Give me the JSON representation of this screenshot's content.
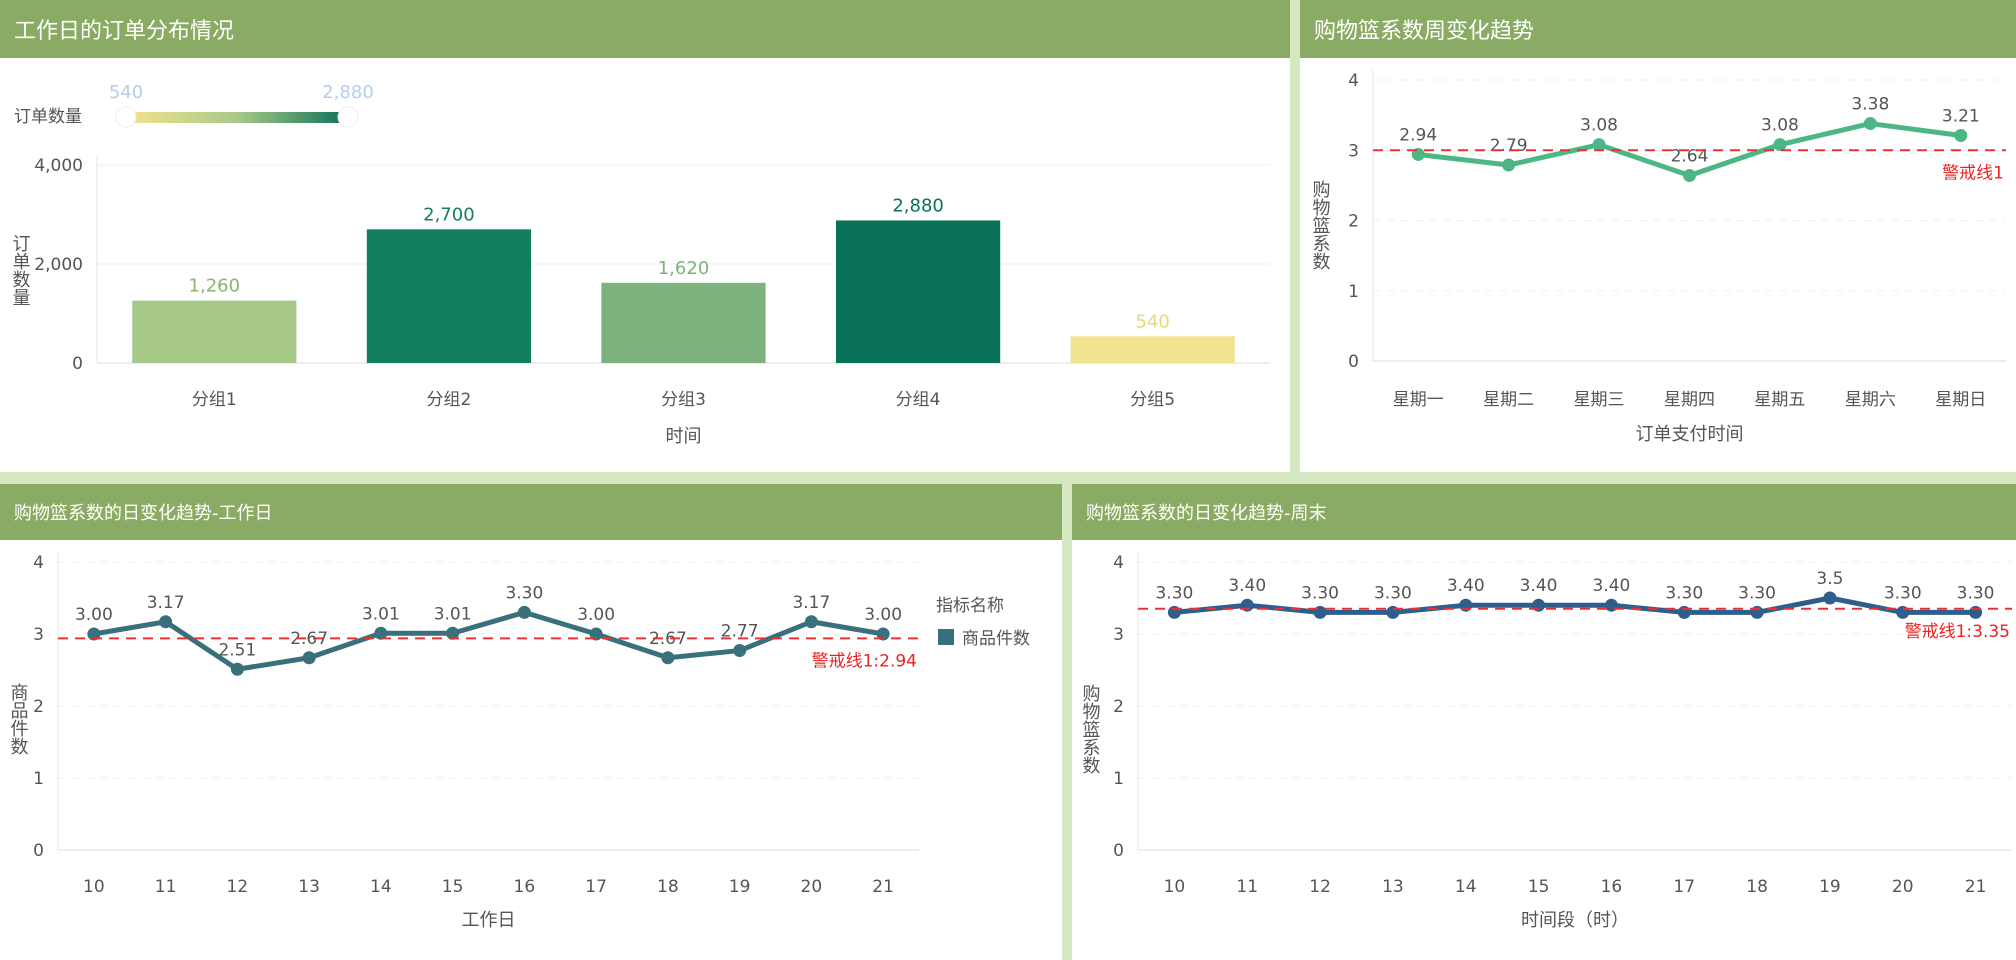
{
  "chart_data": [
    {
      "type": "bar",
      "title": "工作日的订单分布情况",
      "categories": [
        "分组1",
        "分组2",
        "分组3",
        "分组4",
        "分组5"
      ],
      "values": [
        1260,
        2700,
        1620,
        2880,
        540
      ],
      "value_labels": [
        "1,260",
        "2,700",
        "1,620",
        "2,880",
        "540"
      ],
      "xlabel": "时间",
      "ylabel": "订单数量",
      "ylim": [
        0,
        4000
      ],
      "yticks": [
        "0",
        "2,000",
        "4,000"
      ],
      "ytick_values": [
        0,
        2000,
        4000
      ],
      "visual_map": {
        "label": "订单数量",
        "min_label": "540",
        "max_label": "2,880",
        "min": 540,
        "max": 2880,
        "colors": [
          "#f1e48e",
          "#a9c987",
          "#0a7258"
        ]
      },
      "bar_colors": [
        "#a6c98a",
        "#137e5e",
        "#7db27d",
        "#087157",
        "#f1e48e"
      ],
      "label_colors": [
        "#8db46a",
        "#137e5e",
        "#7db27d",
        "#087157",
        "#e8d878"
      ]
    },
    {
      "type": "line",
      "title": "购物篮系数周变化趋势",
      "categories": [
        "星期一",
        "星期二",
        "星期三",
        "星期四",
        "星期五",
        "星期六",
        "星期日"
      ],
      "values": [
        2.94,
        2.79,
        3.08,
        2.64,
        3.08,
        3.38,
        3.21
      ],
      "value_labels": [
        "2.94",
        "2.79",
        "3.08",
        "2.64",
        "3.08",
        "3.38",
        "3.21"
      ],
      "xlabel": "订单支付时间",
      "ylabel": "购物篮系数",
      "ylim": [
        0,
        4
      ],
      "yticks": [
        "0",
        "1",
        "2",
        "3",
        "4"
      ],
      "ytick_values": [
        0,
        1,
        2,
        3,
        4
      ],
      "color": "#4cb784",
      "markline": {
        "label": "警戒线1",
        "value": 3.0
      }
    },
    {
      "type": "line",
      "title": "购物篮系数的日变化趋势-工作日",
      "categories": [
        "10",
        "11",
        "12",
        "13",
        "14",
        "15",
        "16",
        "17",
        "18",
        "19",
        "20",
        "21"
      ],
      "values": [
        3.0,
        3.17,
        2.51,
        2.67,
        3.01,
        3.01,
        3.3,
        3.0,
        2.67,
        2.77,
        3.17,
        3.0
      ],
      "value_labels": [
        "3.00",
        "3.17",
        "2.51",
        "2.67",
        "3.01",
        "3.01",
        "3.30",
        "3.00",
        "2.67",
        "2.77",
        "3.17",
        "3.00"
      ],
      "xlabel": "工作日",
      "ylabel": "商品件数",
      "ylim": [
        0,
        4
      ],
      "yticks": [
        "0",
        "1",
        "2",
        "3",
        "4"
      ],
      "ytick_values": [
        0,
        1,
        2,
        3,
        4
      ],
      "color": "#3a6f7c",
      "markline": {
        "label": "警戒线1:2.94",
        "value": 2.94
      },
      "legend": {
        "title": "指标名称",
        "items": [
          "商品件数"
        ]
      }
    },
    {
      "type": "line",
      "title": "购物篮系数的日变化趋势-周末",
      "categories": [
        "10",
        "11",
        "12",
        "13",
        "14",
        "15",
        "16",
        "17",
        "18",
        "19",
        "20",
        "21"
      ],
      "values": [
        3.3,
        3.4,
        3.3,
        3.3,
        3.4,
        3.4,
        3.4,
        3.3,
        3.3,
        3.5,
        3.3,
        3.3
      ],
      "value_labels": [
        "3.30",
        "3.40",
        "3.30",
        "3.30",
        "3.40",
        "3.40",
        "3.40",
        "3.30",
        "3.30",
        "3.5",
        "3.30",
        "3.30"
      ],
      "xlabel": "时间段（时）",
      "ylabel": "购物篮系数",
      "ylim": [
        0,
        4
      ],
      "yticks": [
        "0",
        "1",
        "2",
        "3",
        "4"
      ],
      "ytick_values": [
        0,
        1,
        2,
        3,
        4
      ],
      "color": "#2f5e8c",
      "markline": {
        "label": "警戒线1:3.35",
        "value": 3.35
      }
    }
  ]
}
